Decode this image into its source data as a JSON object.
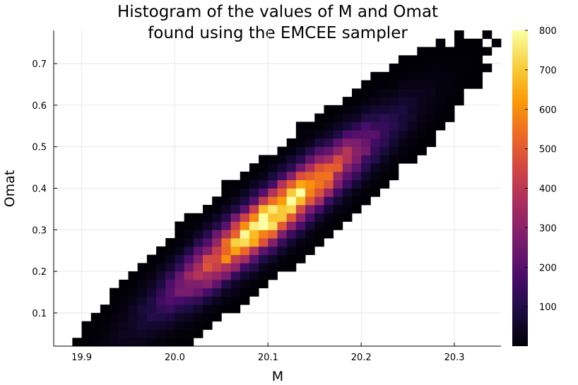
{
  "chart_data": {
    "type": "heatmap",
    "title_lines": [
      "Histogram of the values of M and Omat",
      "found using the EMCEE sampler"
    ],
    "xlabel": "M",
    "ylabel": "Omat",
    "xlim": [
      19.87,
      20.35
    ],
    "ylim": [
      0.02,
      0.78
    ],
    "xticks": [
      19.9,
      20.0,
      20.1,
      20.2,
      20.3
    ],
    "xtick_labels": [
      "19.9",
      "20.0",
      "20.1",
      "20.2",
      "20.3"
    ],
    "yticks": [
      0.1,
      0.2,
      0.3,
      0.4,
      0.5,
      0.6,
      0.7
    ],
    "ytick_labels": [
      "0.1",
      "0.2",
      "0.3",
      "0.4",
      "0.5",
      "0.6",
      "0.7"
    ],
    "grid": true,
    "colorbar": {
      "min": 0,
      "max": 800,
      "ticks": [
        100,
        200,
        300,
        400,
        500,
        600,
        700,
        800
      ],
      "tick_labels": [
        "100",
        "200",
        "300",
        "400",
        "500",
        "600",
        "700",
        "800"
      ],
      "colormap": "inferno",
      "colors": [
        "#000004",
        "#1b0c41",
        "#4a0c6b",
        "#781c6d",
        "#a52c60",
        "#cf4446",
        "#ed6925",
        "#fb9b06",
        "#f7d13d",
        "#fcffa4"
      ]
    },
    "distribution": {
      "mean_M": 20.105,
      "mean_Omat": 0.335,
      "sd_M": 0.065,
      "sd_Omat": 0.12,
      "correlation": 0.93,
      "peak_count": 800,
      "bin_width_M": 0.01,
      "bin_width_Omat": 0.02
    }
  }
}
